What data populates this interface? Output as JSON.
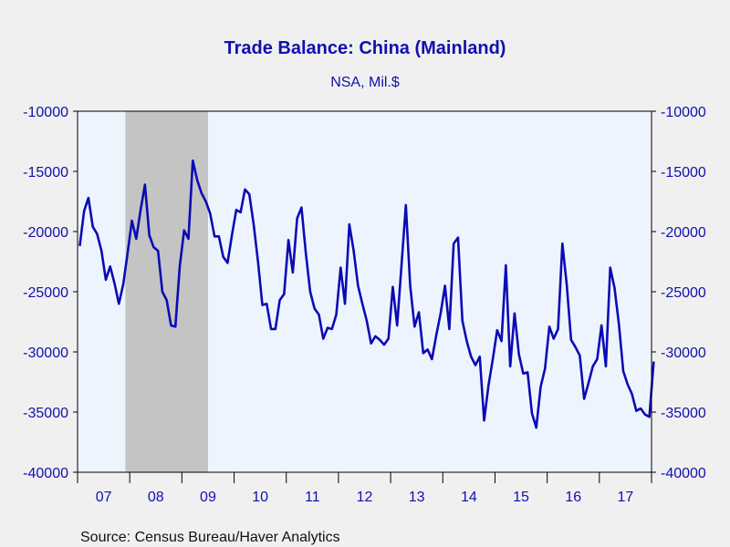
{
  "colors": {
    "background": "#f0f0f0",
    "plot_background": "#eef4fe",
    "recession_shade": "#c4c4c4",
    "line": "#0b0bb5",
    "text": "#1010b0",
    "source_text": "#111111"
  },
  "source": "Source:  Census Bureau/Haver Analytics",
  "chart_data": {
    "type": "line",
    "title": "Trade Balance: China (Mainland)",
    "subtitle": "NSA, Mil.$",
    "xlabel": "",
    "ylabel": "",
    "ylim": [
      -40000,
      -10000
    ],
    "yticks": [
      -10000,
      -15000,
      -20000,
      -25000,
      -30000,
      -35000,
      -40000
    ],
    "ytick_labels": [
      "-10000",
      "-15000",
      "-20000",
      "-25000",
      "-30000",
      "-35000",
      "-40000"
    ],
    "y_axis_sides": [
      "left",
      "right"
    ],
    "x_start": "2007-01",
    "x_end": "2017-12",
    "xtick_labels": [
      "07",
      "08",
      "09",
      "10",
      "11",
      "12",
      "13",
      "14",
      "15",
      "16",
      "17"
    ],
    "grid": false,
    "legend": "none",
    "recession_shading": [
      {
        "start": "2007-12",
        "end": "2009-06"
      }
    ],
    "series": [
      {
        "values": [
          -21200,
          -18300,
          -17200,
          -19600,
          -20200,
          -21600,
          -24000,
          -22900,
          -24300,
          -26000,
          -24400,
          -21800,
          -19100,
          -20600,
          -18200,
          -16100,
          -20300,
          -21300,
          -21600,
          -25000,
          -25700,
          -27800,
          -27900,
          -22900,
          -19900,
          -20600,
          -14100,
          -15700,
          -16800,
          -17500,
          -18500,
          -20400,
          -20400,
          -22100,
          -22600,
          -20300,
          -18200,
          -18400,
          -16500,
          -16900,
          -19400,
          -22500,
          -26100,
          -26000,
          -28100,
          -28100,
          -25700,
          -25200,
          -20700,
          -23400,
          -18900,
          -18000,
          -21800,
          -25000,
          -26400,
          -26900,
          -28900,
          -28000,
          -28100,
          -26900,
          -23000,
          -26000,
          -19400,
          -21600,
          -24500,
          -26000,
          -27400,
          -29300,
          -28700,
          -29000,
          -29400,
          -28900,
          -24600,
          -27800,
          -22800,
          -17800,
          -24500,
          -27900,
          -26700,
          -30100,
          -29800,
          -30600,
          -28600,
          -26800,
          -24500,
          -28100,
          -21000,
          -20500,
          -27400,
          -29100,
          -30400,
          -31100,
          -30400,
          -35700,
          -32800,
          -30600,
          -28200,
          -29100,
          -22800,
          -31200,
          -26800,
          -30200,
          -31800,
          -31700,
          -35100,
          -36300,
          -32900,
          -31400,
          -27900,
          -28900,
          -28100,
          -21000,
          -24400,
          -29000,
          -29600,
          -30300,
          -33900,
          -32600,
          -31200,
          -30600,
          -27800,
          -31200,
          -23000,
          -24700,
          -27700,
          -31600,
          -32700,
          -33500,
          -34900,
          -34700,
          -35200,
          -35400,
          -30800
        ]
      }
    ]
  }
}
